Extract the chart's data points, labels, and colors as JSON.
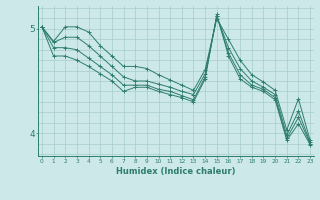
{
  "title": "",
  "xlabel": "Humidex (Indice chaleur)",
  "ylabel": "",
  "bg_color": "#cce8e8",
  "line_color": "#2e7d6e",
  "grid_color": "#a8cccc",
  "axis_color": "#2e7d6e",
  "text_color": "#2e7d6e",
  "xticks": [
    0,
    1,
    2,
    3,
    4,
    5,
    6,
    7,
    8,
    9,
    10,
    11,
    12,
    13,
    14,
    15,
    16,
    17,
    18,
    19,
    20,
    21,
    22,
    23
  ],
  "yticks": [
    4,
    5
  ],
  "ylim": [
    3.78,
    5.22
  ],
  "xlim": [
    -0.3,
    23.3
  ],
  "lines": [
    {
      "x": [
        0,
        1,
        2,
        3,
        4,
        5,
        6,
        7,
        8,
        9,
        10,
        11,
        12,
        13,
        14,
        15,
        16,
        17,
        18,
        19,
        20,
        21,
        22,
        23
      ],
      "y": [
        5.02,
        4.88,
        5.02,
        5.02,
        4.97,
        4.84,
        4.74,
        4.64,
        4.64,
        4.62,
        4.56,
        4.51,
        4.46,
        4.41,
        4.61,
        5.1,
        4.9,
        4.7,
        4.56,
        4.49,
        4.41,
        4.03,
        4.33,
        3.93
      ]
    },
    {
      "x": [
        0,
        1,
        2,
        3,
        4,
        5,
        6,
        7,
        8,
        9,
        10,
        11,
        12,
        13,
        14,
        15,
        16,
        17,
        18,
        19,
        20,
        21,
        22,
        23
      ],
      "y": [
        5.02,
        4.74,
        4.74,
        4.7,
        4.64,
        4.57,
        4.5,
        4.4,
        4.44,
        4.44,
        4.4,
        4.37,
        4.34,
        4.3,
        4.52,
        5.14,
        4.74,
        4.52,
        4.44,
        4.4,
        4.32,
        3.93,
        4.09,
        3.89
      ]
    },
    {
      "x": [
        0,
        1,
        2,
        3,
        4,
        5,
        6,
        7,
        8,
        9,
        10,
        11,
        12,
        13,
        14,
        15,
        16,
        17,
        18,
        19,
        20,
        21,
        22,
        23
      ],
      "y": [
        5.02,
        4.87,
        4.92,
        4.92,
        4.84,
        4.74,
        4.64,
        4.54,
        4.5,
        4.5,
        4.47,
        4.44,
        4.4,
        4.37,
        4.57,
        5.12,
        4.82,
        4.62,
        4.5,
        4.44,
        4.37,
        3.98,
        4.21,
        3.91
      ]
    },
    {
      "x": [
        0,
        1,
        2,
        3,
        4,
        5,
        6,
        7,
        8,
        9,
        10,
        11,
        12,
        13,
        14,
        15,
        16,
        17,
        18,
        19,
        20,
        21,
        22,
        23
      ],
      "y": [
        5.02,
        4.82,
        4.82,
        4.8,
        4.72,
        4.64,
        4.56,
        4.46,
        4.46,
        4.46,
        4.42,
        4.4,
        4.36,
        4.32,
        4.54,
        5.12,
        4.77,
        4.56,
        4.46,
        4.42,
        4.34,
        3.95,
        4.15,
        3.9
      ]
    }
  ]
}
